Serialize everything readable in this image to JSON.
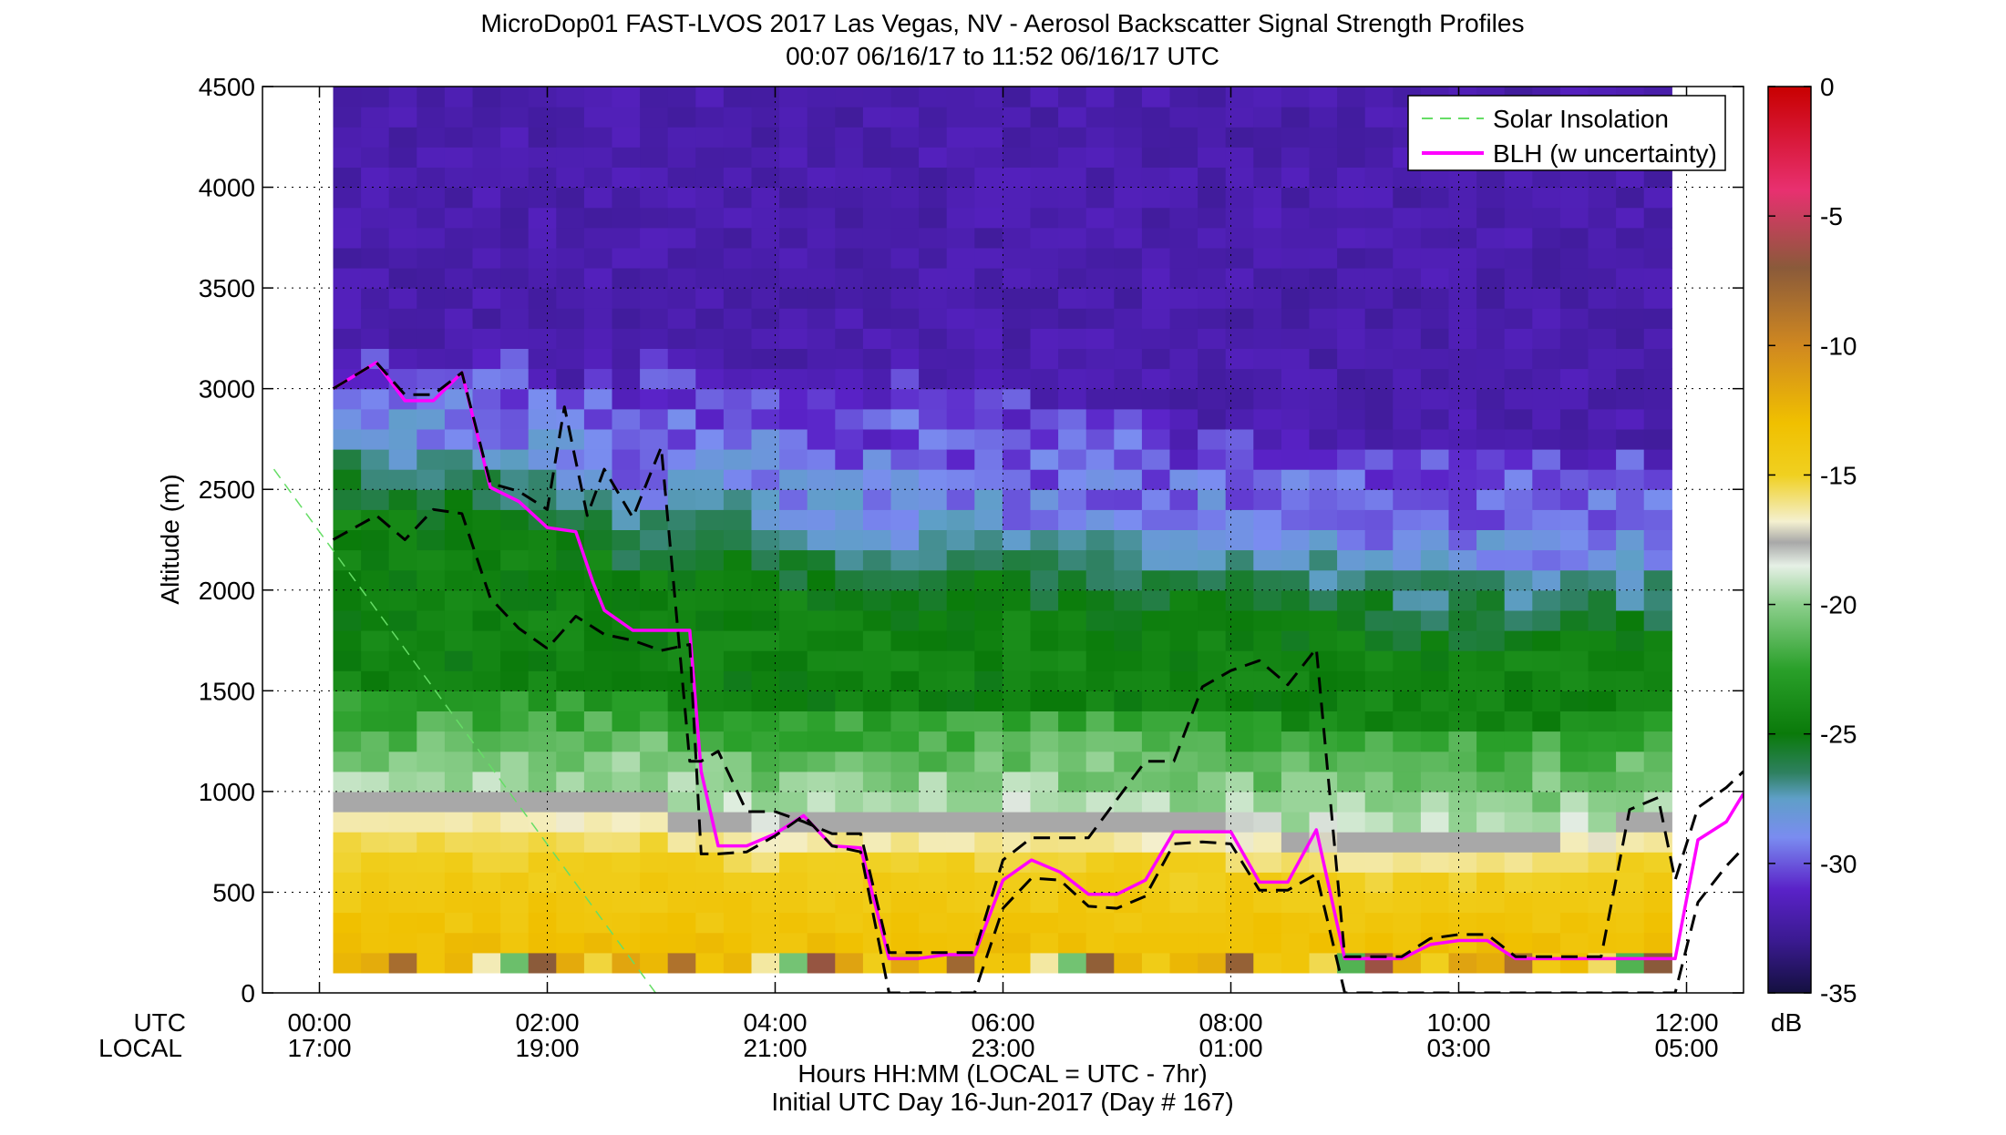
{
  "chart_data": {
    "type": "heatmap",
    "title_line1": "MicroDop01 FAST-LVOS 2017 Las Vegas, NV - Aerosol Backscatter Signal Strength Profiles",
    "title_line2": "00:07 06/16/17 to 11:52 06/16/17  UTC",
    "ylabel": "Altitude (m)",
    "ylim": [
      0,
      4500
    ],
    "yticks": [
      "0",
      "500",
      "1000",
      "1500",
      "2000",
      "2500",
      "3000",
      "3500",
      "4000",
      "4500"
    ],
    "xlim_hours": [
      -0.5,
      12.5
    ],
    "x_row_labels": {
      "utc": "UTC",
      "local": "LOCAL"
    },
    "xticks": [
      {
        "h": 0,
        "utc": "00:00",
        "local": "17:00"
      },
      {
        "h": 2,
        "utc": "02:00",
        "local": "19:00"
      },
      {
        "h": 4,
        "utc": "04:00",
        "local": "21:00"
      },
      {
        "h": 6,
        "utc": "06:00",
        "local": "23:00"
      },
      {
        "h": 8,
        "utc": "08:00",
        "local": "01:00"
      },
      {
        "h": 10,
        "utc": "10:00",
        "local": "03:00"
      },
      {
        "h": 12,
        "utc": "12:00",
        "local": "05:00"
      }
    ],
    "xlabel_line1": "Hours HH:MM  (LOCAL = UTC - 7hr)",
    "xlabel_line2": "Initial UTC Day 16-Jun-2017 (Day # 167)",
    "colorbar": {
      "range": [
        -35,
        0
      ],
      "ticks": [
        "0",
        "-5",
        "-10",
        "-15",
        "-20",
        "-25",
        "-30",
        "-35"
      ],
      "units": "dB",
      "stops": [
        {
          "v": -35,
          "c": "#141040"
        },
        {
          "v": -33,
          "c": "#3a1a90"
        },
        {
          "v": -31,
          "c": "#5a22c8"
        },
        {
          "v": -29,
          "c": "#7a8cf0"
        },
        {
          "v": -27.5,
          "c": "#5f9fc8"
        },
        {
          "v": -26.5,
          "c": "#2e8060"
        },
        {
          "v": -25,
          "c": "#0a7a0a"
        },
        {
          "v": -22.5,
          "c": "#2aa02a"
        },
        {
          "v": -20,
          "c": "#8ccf8c"
        },
        {
          "v": -18.5,
          "c": "#e6f0e6"
        },
        {
          "v": -17.6,
          "c": "#a8a8a8"
        },
        {
          "v": -16.8,
          "c": "#f4f0d0"
        },
        {
          "v": -15,
          "c": "#f0d020"
        },
        {
          "v": -13,
          "c": "#f0c000"
        },
        {
          "v": -10,
          "c": "#d08820"
        },
        {
          "v": -7,
          "c": "#8a5a3a"
        },
        {
          "v": -4,
          "c": "#e83070"
        },
        {
          "v": 0,
          "c": "#c80000"
        }
      ]
    },
    "data_extent_hours": [
      0.12,
      11.87
    ],
    "bins": 48,
    "profile_structure": {
      "surface_db": -12,
      "aerosol_layer_top_m": [
        850,
        850,
        850,
        850,
        850,
        850,
        850,
        850,
        850,
        850,
        850,
        850,
        800,
        800,
        760,
        740,
        760,
        780,
        780,
        780,
        790,
        780,
        770,
        760,
        800,
        800,
        780,
        800,
        800,
        760,
        760,
        760,
        740,
        720,
        700,
        720,
        700,
        700,
        700,
        700,
        700,
        700,
        700,
        700,
        720,
        740,
        760,
        780
      ],
      "mixed_top_m": [
        2600,
        2600,
        2550,
        2550,
        2550,
        2550,
        2500,
        2450,
        2400,
        2350,
        2250,
        2250,
        2250,
        2250,
        2300,
        2250,
        2200,
        2150,
        2150,
        2100,
        2100,
        2150,
        2200,
        2200,
        2100,
        2100,
        2100,
        2100,
        2100,
        2100,
        2100,
        2100,
        2100,
        2050,
        2000,
        2000,
        2000,
        2000,
        1950,
        1950,
        1950,
        1950,
        1950,
        1950,
        1950,
        1950,
        1950,
        1950
      ],
      "clean_top_m": [
        3100,
        3200,
        3200,
        3150,
        3100,
        3150,
        3200,
        3100,
        3000,
        3050,
        3100,
        3150,
        3050,
        3050,
        3050,
        3100,
        3000,
        2950,
        3000,
        3000,
        3050,
        3000,
        2950,
        2950,
        2950,
        2900,
        2900,
        2850,
        2900,
        2850,
        2800,
        2800,
        2800,
        2800,
        2750,
        2700,
        2650,
        2650,
        2700,
        2700,
        2650,
        2650,
        2650,
        2650,
        2600,
        2600,
        2650,
        2600
      ]
    },
    "series": [
      {
        "name": "Solar Insolation",
        "style": "dashed",
        "color": "#66dd66",
        "x": [
          -0.4,
          2.95
        ],
        "y": [
          2600,
          0
        ]
      },
      {
        "name": "BLH (w uncertainty)",
        "style": "solid",
        "color": "#ff00ff",
        "x": [
          0.12,
          0.5,
          0.75,
          1.0,
          1.25,
          1.5,
          1.75,
          2.0,
          2.25,
          2.4,
          2.5,
          2.75,
          3.0,
          3.25,
          3.35,
          3.5,
          3.75,
          4.0,
          4.25,
          4.5,
          4.75,
          5.0,
          5.25,
          5.5,
          5.75,
          6.0,
          6.25,
          6.5,
          6.75,
          7.0,
          7.25,
          7.5,
          7.75,
          8.0,
          8.25,
          8.5,
          8.75,
          9.0,
          9.25,
          9.5,
          9.75,
          10.0,
          10.25,
          10.5,
          10.75,
          11.0,
          11.25,
          11.5,
          11.75,
          11.9,
          12.1,
          12.35,
          12.5
        ],
        "y": [
          3000,
          3130,
          2940,
          2940,
          3080,
          2510,
          2440,
          2310,
          2290,
          2040,
          1900,
          1800,
          1800,
          1800,
          1100,
          730,
          730,
          790,
          880,
          730,
          720,
          170,
          170,
          190,
          190,
          560,
          660,
          600,
          490,
          490,
          560,
          800,
          800,
          800,
          550,
          550,
          810,
          170,
          170,
          170,
          240,
          260,
          260,
          170,
          170,
          170,
          170,
          170,
          170,
          170,
          760,
          850,
          990
        ]
      },
      {
        "name": "BLH upper bound",
        "style": "dashed",
        "color": "#000000",
        "x": [
          0.12,
          0.5,
          0.75,
          1.0,
          1.25,
          1.5,
          1.75,
          2.0,
          2.15,
          2.35,
          2.5,
          2.75,
          3.0,
          3.25,
          3.35,
          3.5,
          3.75,
          4.0,
          4.25,
          4.5,
          4.75,
          5.0,
          5.25,
          5.5,
          5.75,
          6.0,
          6.25,
          6.5,
          6.75,
          7.0,
          7.25,
          7.5,
          7.75,
          8.0,
          8.25,
          8.5,
          8.75,
          9.0,
          9.25,
          9.5,
          9.75,
          10.0,
          10.25,
          10.5,
          10.75,
          11.0,
          11.25,
          11.5,
          11.75,
          11.9,
          12.1,
          12.35,
          12.5
        ],
        "y": [
          3000,
          3130,
          2970,
          2970,
          3080,
          2530,
          2490,
          2400,
          2910,
          2370,
          2600,
          2360,
          2710,
          1150,
          1150,
          1200,
          900,
          900,
          850,
          790,
          790,
          200,
          200,
          200,
          200,
          660,
          770,
          770,
          770,
          960,
          1150,
          1150,
          1520,
          1600,
          1650,
          1530,
          1710,
          180,
          180,
          180,
          270,
          290,
          290,
          180,
          180,
          180,
          180,
          910,
          970,
          560,
          920,
          1020,
          1100
        ]
      },
      {
        "name": "BLH lower bound",
        "style": "dashed",
        "color": "#000000",
        "x": [
          0.12,
          0.5,
          0.75,
          1.0,
          1.25,
          1.5,
          1.75,
          2.0,
          2.25,
          2.5,
          2.75,
          3.0,
          3.25,
          3.35,
          3.5,
          3.75,
          4.0,
          4.25,
          4.5,
          4.75,
          5.0,
          5.25,
          5.5,
          5.75,
          6.0,
          6.25,
          6.5,
          6.75,
          7.0,
          7.25,
          7.5,
          7.75,
          8.0,
          8.25,
          8.5,
          8.75,
          9.0,
          9.25,
          9.5,
          9.75,
          10.0,
          10.25,
          10.5,
          10.75,
          11.0,
          11.25,
          11.5,
          11.75,
          11.9,
          12.1,
          12.35,
          12.5
        ],
        "y": [
          2250,
          2370,
          2250,
          2400,
          2380,
          1960,
          1810,
          1710,
          1870,
          1780,
          1750,
          1700,
          1730,
          690,
          690,
          700,
          780,
          880,
          730,
          700,
          0,
          0,
          0,
          0,
          420,
          570,
          560,
          430,
          420,
          480,
          740,
          750,
          740,
          510,
          510,
          590,
          0,
          0,
          0,
          0,
          0,
          0,
          0,
          0,
          0,
          0,
          0,
          0,
          0,
          450,
          630,
          720
        ]
      }
    ],
    "legend": {
      "placement": "top-right",
      "entries": [
        "Solar Insolation",
        "BLH (w uncertainty)"
      ]
    },
    "grid": "dotted"
  }
}
